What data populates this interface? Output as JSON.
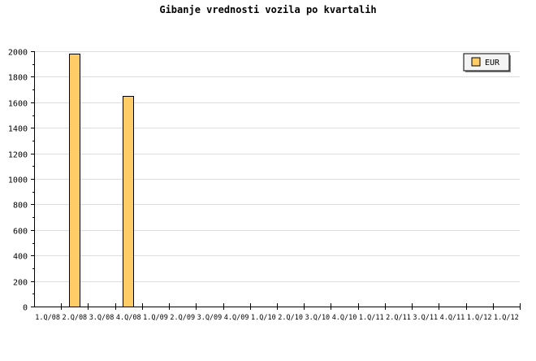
{
  "chart_data": {
    "type": "bar",
    "title": "Gibanje vrednosti vozila po kvartalih",
    "xlabel": "",
    "ylabel": "",
    "categories": [
      "1.Q/08",
      "2.Q/08",
      "3.Q/08",
      "4.Q/08",
      "1.Q/09",
      "2.Q/09",
      "3.Q/09",
      "4.Q/09",
      "1.Q/10",
      "2.Q/10",
      "3.Q/10",
      "4.Q/10",
      "1.Q/11",
      "2.Q/11",
      "3.Q/11",
      "4.Q/11",
      "1.Q/12",
      "1.Q/12"
    ],
    "series": [
      {
        "name": "EUR",
        "color": "#ffcc66",
        "values": [
          0,
          1980,
          0,
          1650,
          0,
          0,
          0,
          0,
          0,
          0,
          0,
          0,
          0,
          0,
          0,
          0,
          0,
          0
        ]
      }
    ],
    "ylim": [
      0,
      2000
    ],
    "yticks": [
      0,
      200,
      400,
      600,
      800,
      1000,
      1200,
      1400,
      1600,
      1800,
      2000
    ],
    "grid": true,
    "legend": "top-right"
  }
}
